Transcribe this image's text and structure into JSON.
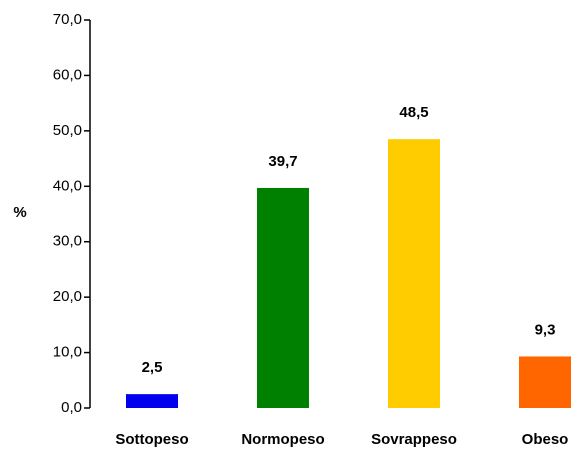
{
  "chart_data": {
    "type": "bar",
    "ylabel": "%",
    "categories": [
      "Sottopeso",
      "Normopeso",
      "Sovrappeso",
      "Obeso"
    ],
    "values": [
      2.5,
      39.7,
      48.5,
      9.3
    ],
    "value_labels": [
      "2,5",
      "39,7",
      "48,5",
      "9,3"
    ],
    "colors": [
      "#0000ee",
      "#008000",
      "#ffcc00",
      "#ff6600"
    ],
    "ylim": [
      0,
      70
    ],
    "yticks": [
      {
        "value": 0,
        "label": "0,0"
      },
      {
        "value": 10,
        "label": "10,0"
      },
      {
        "value": 20,
        "label": "20,0"
      },
      {
        "value": 30,
        "label": "30,0"
      },
      {
        "value": 40,
        "label": "40,0"
      },
      {
        "value": 50,
        "label": "50,0"
      },
      {
        "value": 60,
        "label": "60,0"
      },
      {
        "value": 70,
        "label": "70,0"
      }
    ],
    "grid": false
  }
}
